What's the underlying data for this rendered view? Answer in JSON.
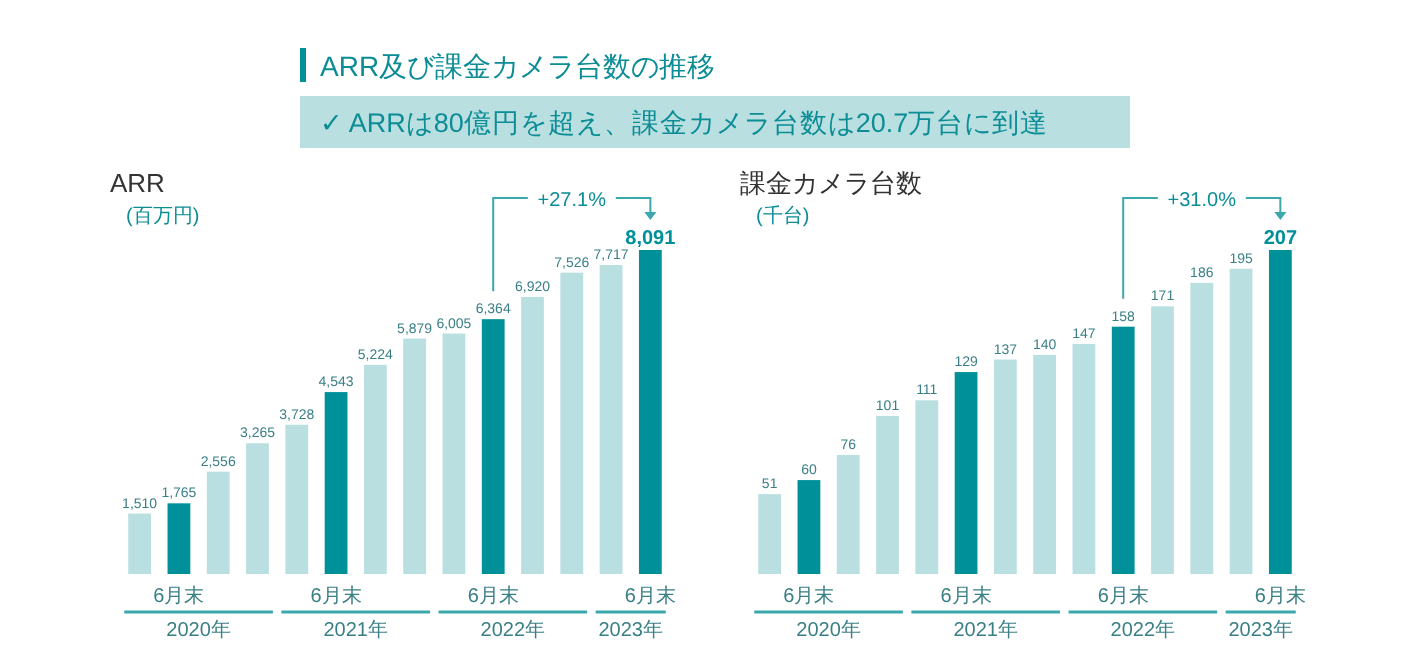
{
  "chart_data": [
    {
      "type": "other",
      "title": "ARR及び課金カメラ台数の推移",
      "subtitle": "✓ ARRは80億円を超え、課金カメラ台数は20.7万台に到達"
    },
    {
      "type": "bar",
      "title": "ARR",
      "ylabel": "(百万円)",
      "categories": [
        null,
        "6月末",
        null,
        null,
        null,
        "6月末",
        null,
        null,
        null,
        "6月末",
        null,
        null,
        null,
        "6月末"
      ],
      "values": [
        1510,
        1765,
        2556,
        3265,
        3728,
        4543,
        5224,
        5879,
        6005,
        6364,
        6920,
        7526,
        7717,
        8091
      ],
      "colors": [
        "#b9dfe0",
        "#00909a",
        "#b9dfe0",
        "#b9dfe0",
        "#b9dfe0",
        "#00909a",
        "#b9dfe0",
        "#b9dfe0",
        "#b9dfe0",
        "#00909a",
        "#b9dfe0",
        "#b9dfe0",
        "#b9dfe0",
        "#00909a"
      ],
      "value_labels": [
        "1,510",
        "1,765",
        "2,556",
        "3,265",
        "3,728",
        "4,543",
        "5,224",
        "5,879",
        "6,005",
        "6,364",
        "6,920",
        "7,526",
        "7,717",
        "8,091"
      ],
      "annotations": [
        "+27.1%",
        "2020年",
        "2021年",
        "2022年",
        "2023年"
      ]
    },
    {
      "type": "bar",
      "title": "課金カメラ台数",
      "ylabel": "(千台)",
      "categories": [
        null,
        "6月末",
        null,
        null,
        null,
        "6月末",
        null,
        null,
        null,
        "6月末",
        null,
        null,
        null,
        "6月末"
      ],
      "values": [
        51,
        60,
        76,
        101,
        111,
        129,
        137,
        140,
        147,
        158,
        171,
        186,
        195,
        207
      ],
      "colors": [
        "#b9dfe0",
        "#00909a",
        "#b9dfe0",
        "#b9dfe0",
        "#b9dfe0",
        "#00909a",
        "#b9dfe0",
        "#b9dfe0",
        "#b9dfe0",
        "#00909a",
        "#b9dfe0",
        "#b9dfe0",
        "#b9dfe0",
        "#00909a"
      ],
      "data_labels": true,
      "annotations": [
        "+31.0%",
        "2020年",
        "2021年",
        "2022年",
        "2023年"
      ]
    }
  ]
}
